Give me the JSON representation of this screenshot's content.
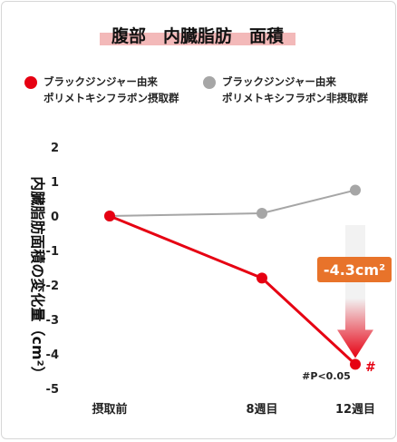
{
  "chart_data": {
    "type": "line",
    "title": "腹部　内臓脂肪　面積",
    "ylabel": "内臓脂肪面積の変化量（cm²）",
    "categories": [
      "摂取前",
      "8週目",
      "12週目"
    ],
    "ylim": [
      -5,
      2
    ],
    "yticks": [
      2,
      1,
      0,
      -1,
      -2,
      -3,
      -4,
      -5
    ],
    "ytick_labels": [
      "2",
      "1",
      "0",
      "-1",
      "-2",
      "-3",
      "-4",
      "-5"
    ],
    "grid": false,
    "legend_position": "top",
    "series": [
      {
        "name_line1": "ブラックジンジャー由来",
        "name_line2": "ポリメトキシフラボン摂取群",
        "color": "#e60012",
        "values": [
          0,
          -1.8,
          -4.3
        ]
      },
      {
        "name_line1": "ブラックジンジャー由来",
        "name_line2": "ポリメトキシフラボン非摂取群",
        "color": "#a6a6a6",
        "values": [
          0,
          0.08,
          0.75
        ]
      }
    ],
    "annotations": {
      "difference_label": "-4.3cm²",
      "difference_color": "#e8732a",
      "significance_note": "#P<0.05",
      "significance_mark": "#"
    },
    "colors": {
      "title_underline": "#f3b9b9",
      "arrow_top": "#f2f2f2",
      "arrow_bottom": "#e60012"
    }
  }
}
